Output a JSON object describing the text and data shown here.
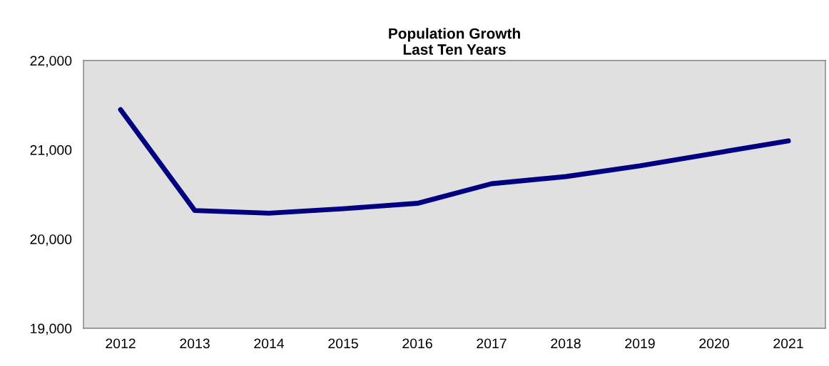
{
  "chart_data": {
    "type": "line",
    "title": "Population Growth\nLast Ten Years",
    "categories": [
      "2012",
      "2013",
      "2014",
      "2015",
      "2016",
      "2017",
      "2018",
      "2019",
      "2020",
      "2021"
    ],
    "series": [
      {
        "color": "#000080",
        "values": [
          21450,
          20320,
          20290,
          20340,
          20400,
          20620,
          20700,
          20820,
          20960,
          21100
        ]
      }
    ],
    "ylim": [
      19000,
      22000
    ],
    "yticks": [
      {
        "value": 19000,
        "label": "19,000"
      },
      {
        "value": 20000,
        "label": "20,000"
      },
      {
        "value": 21000,
        "label": "21,000"
      },
      {
        "value": 22000,
        "label": "22,000"
      }
    ],
    "grid": false,
    "marker": "none",
    "line_style": "solid"
  }
}
